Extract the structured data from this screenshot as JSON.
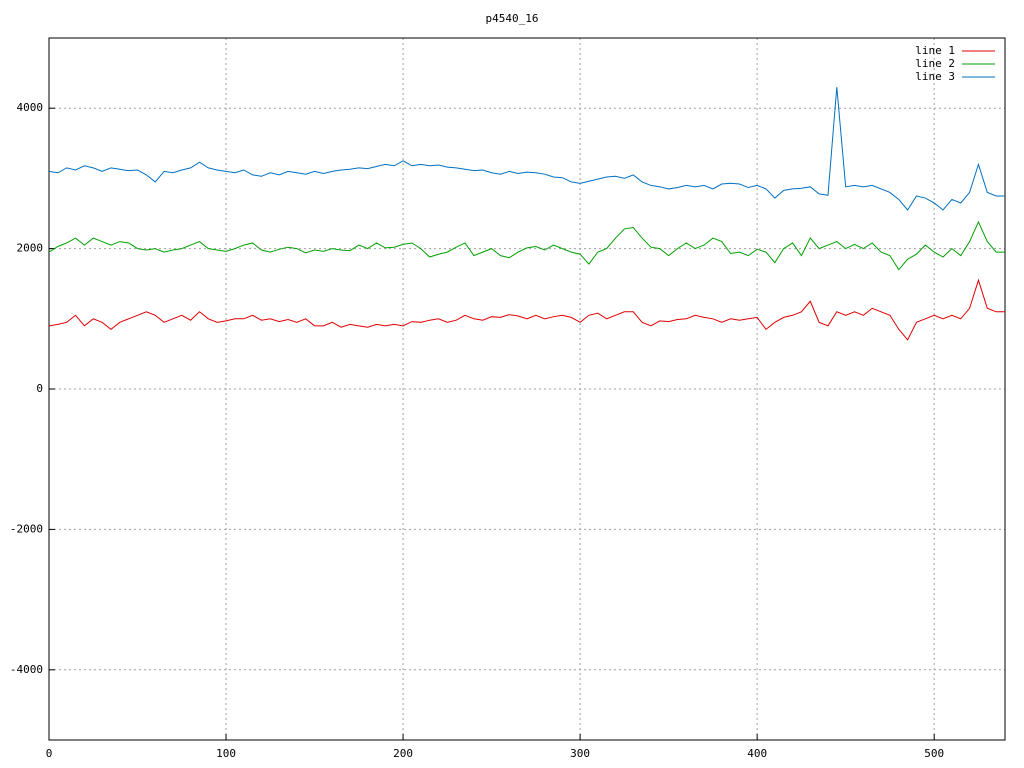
{
  "chart_data": {
    "type": "line",
    "title": "p4540_16",
    "x": [
      0,
      5,
      10,
      15,
      20,
      25,
      30,
      35,
      40,
      45,
      50,
      55,
      60,
      65,
      70,
      75,
      80,
      85,
      90,
      95,
      100,
      105,
      110,
      115,
      120,
      125,
      130,
      135,
      140,
      145,
      150,
      155,
      160,
      165,
      170,
      175,
      180,
      185,
      190,
      195,
      200,
      205,
      210,
      215,
      220,
      225,
      230,
      235,
      240,
      245,
      250,
      255,
      260,
      265,
      270,
      275,
      280,
      285,
      290,
      295,
      300,
      305,
      310,
      315,
      320,
      325,
      330,
      335,
      340,
      345,
      350,
      355,
      360,
      365,
      370,
      375,
      380,
      385,
      390,
      395,
      400,
      405,
      410,
      415,
      420,
      425,
      430,
      435,
      440,
      445,
      450,
      455,
      460,
      465,
      470,
      475,
      480,
      485,
      490,
      495,
      500,
      505,
      510,
      515,
      520,
      525,
      530,
      535,
      540
    ],
    "series": [
      {
        "name": "line 1",
        "color": "#e00000",
        "values": [
          900,
          920,
          950,
          1050,
          900,
          1000,
          950,
          850,
          950,
          1000,
          1050,
          1100,
          1050,
          950,
          1000,
          1050,
          980,
          1100,
          1000,
          950,
          970,
          1000,
          1000,
          1050,
          980,
          1000,
          960,
          990,
          950,
          1000,
          900,
          900,
          950,
          880,
          920,
          900,
          880,
          920,
          900,
          920,
          900,
          960,
          950,
          980,
          1000,
          950,
          980,
          1050,
          1000,
          980,
          1030,
          1020,
          1060,
          1040,
          1000,
          1050,
          1000,
          1030,
          1050,
          1020,
          950,
          1050,
          1080,
          1000,
          1050,
          1100,
          1100,
          950,
          900,
          970,
          960,
          990,
          1000,
          1050,
          1020,
          1000,
          950,
          1000,
          980,
          1000,
          1020,
          850,
          950,
          1020,
          1050,
          1100,
          1250,
          950,
          900,
          1100,
          1050,
          1100,
          1050,
          1150,
          1100,
          1050,
          850,
          700,
          950,
          1000,
          1050,
          1000,
          1050,
          1000,
          1150,
          1550,
          1150,
          1100,
          1100
        ]
      },
      {
        "name": "line 2",
        "color": "#00a000",
        "values": [
          1950,
          2030,
          2080,
          2150,
          2050,
          2150,
          2100,
          2050,
          2100,
          2080,
          2000,
          1980,
          2000,
          1950,
          1980,
          2000,
          2050,
          2100,
          2000,
          1980,
          1960,
          2000,
          2050,
          2080,
          1980,
          1950,
          1990,
          2020,
          2000,
          1940,
          1980,
          1960,
          2000,
          1980,
          1970,
          2050,
          2000,
          2080,
          2010,
          2020,
          2060,
          2080,
          2000,
          1880,
          1920,
          1950,
          2020,
          2080,
          1900,
          1950,
          2000,
          1900,
          1870,
          1950,
          2010,
          2030,
          1980,
          2050,
          2000,
          1950,
          1920,
          1780,
          1950,
          2000,
          2150,
          2280,
          2300,
          2150,
          2020,
          2000,
          1900,
          2000,
          2080,
          2000,
          2050,
          2150,
          2100,
          1930,
          1950,
          1900,
          1990,
          1950,
          1800,
          2000,
          2080,
          1900,
          2150,
          2000,
          2050,
          2100,
          2000,
          2060,
          2000,
          2080,
          1950,
          1900,
          1700,
          1850,
          1920,
          2050,
          1950,
          1880,
          2000,
          1900,
          2100,
          2380,
          2100,
          1950,
          1950
        ]
      },
      {
        "name": "line 3",
        "color": "#0070c0",
        "values": [
          3100,
          3080,
          3150,
          3120,
          3180,
          3150,
          3100,
          3150,
          3130,
          3110,
          3120,
          3050,
          2950,
          3100,
          3080,
          3120,
          3150,
          3230,
          3150,
          3120,
          3100,
          3080,
          3120,
          3050,
          3030,
          3080,
          3050,
          3100,
          3080,
          3060,
          3100,
          3070,
          3100,
          3120,
          3130,
          3150,
          3140,
          3170,
          3200,
          3180,
          3250,
          3180,
          3200,
          3180,
          3190,
          3160,
          3150,
          3130,
          3110,
          3120,
          3080,
          3060,
          3100,
          3070,
          3090,
          3080,
          3060,
          3020,
          3010,
          2950,
          2930,
          2960,
          2990,
          3020,
          3030,
          3000,
          3050,
          2950,
          2900,
          2880,
          2850,
          2870,
          2900,
          2880,
          2900,
          2850,
          2920,
          2930,
          2920,
          2870,
          2900,
          2850,
          2720,
          2830,
          2850,
          2860,
          2880,
          2780,
          2760,
          4300,
          2880,
          2900,
          2880,
          2900,
          2850,
          2800,
          2700,
          2550,
          2750,
          2720,
          2650,
          2550,
          2700,
          2650,
          2800,
          3200,
          2800,
          2750,
          2750
        ]
      }
    ],
    "xlim": [
      0,
      540
    ],
    "xticks": [
      0,
      100,
      200,
      300,
      400,
      500
    ],
    "ylim": [
      -5000,
      5000
    ],
    "yticks": [
      -4000,
      -2000,
      0,
      2000,
      4000
    ],
    "grid": true,
    "legend": "top-right"
  }
}
